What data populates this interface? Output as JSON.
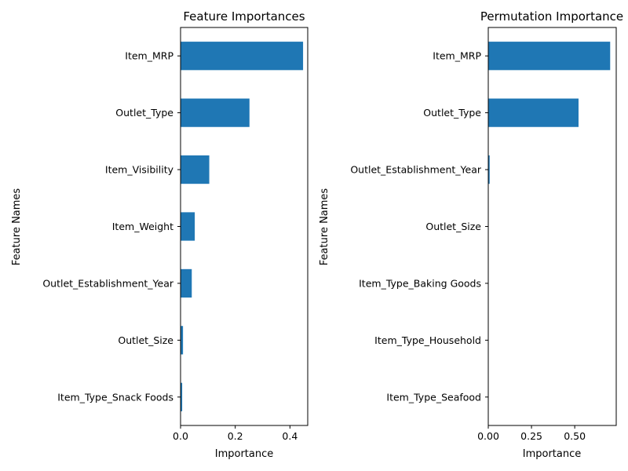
{
  "chart_data": [
    {
      "type": "bar",
      "orientation": "horizontal",
      "title": "Feature Importances",
      "xlabel": "Importance",
      "ylabel": "Feature Names",
      "categories": [
        "Item_MRP",
        "Outlet_Type",
        "Item_Visibility",
        "Item_Weight",
        "Outlet_Establishment_Year",
        "Outlet_Size",
        "Item_Type_Snack Foods"
      ],
      "values": [
        0.448,
        0.252,
        0.105,
        0.052,
        0.041,
        0.009,
        0.006
      ],
      "xlim": [
        0,
        0.465
      ],
      "xticks": [
        0.0,
        0.2,
        0.4
      ],
      "xtick_labels": [
        "0.0",
        "0.2",
        "0.4"
      ],
      "bar_color": "#1f77b4",
      "grid": false
    },
    {
      "type": "bar",
      "orientation": "horizontal",
      "title": "Permutation Importance",
      "xlabel": "Importance",
      "ylabel": "Feature Names",
      "categories": [
        "Item_MRP",
        "Outlet_Type",
        "Outlet_Establishment_Year",
        "Outlet_Size",
        "Item_Type_Baking Goods",
        "Item_Type_Household",
        "Item_Type_Seafood"
      ],
      "values": [
        0.705,
        0.522,
        0.008,
        0.0,
        0.0,
        0.0,
        0.0
      ],
      "xlim": [
        0,
        0.74
      ],
      "xticks": [
        0.0,
        0.25,
        0.5
      ],
      "xtick_labels": [
        "0.00",
        "0.25",
        "0.50"
      ],
      "bar_color": "#1f77b4",
      "grid": false
    }
  ]
}
